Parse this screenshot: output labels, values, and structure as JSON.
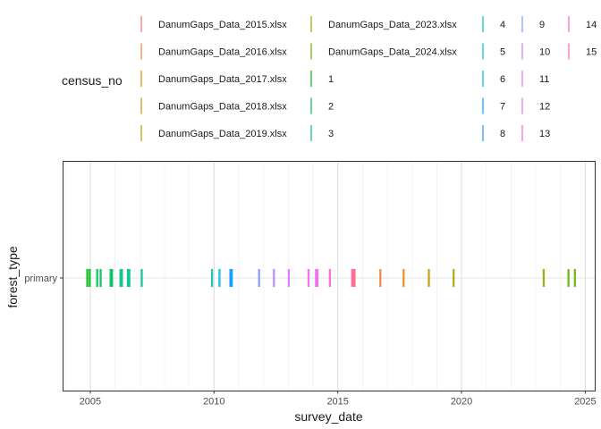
{
  "chart_data": {
    "type": "scatter",
    "title": "",
    "xlabel": "survey_date",
    "ylabel": "forest_type",
    "xlim": [
      2003.9,
      2025.4
    ],
    "x_ticks": [
      2005,
      2010,
      2015,
      2020,
      2025
    ],
    "x_tick_labels": [
      "2005",
      "2010",
      "2015",
      "2020",
      "2025"
    ],
    "categories": [
      "primary"
    ],
    "grid": true,
    "legend": {
      "title": "census_no",
      "placement": "top",
      "columns": [
        [
          "DanumGaps_Data_2015.xlsx",
          "DanumGaps_Data_2016.xlsx",
          "DanumGaps_Data_2017.xlsx",
          "DanumGaps_Data_2018.xlsx",
          "DanumGaps_Data_2019.xlsx"
        ],
        [
          "DanumGaps_Data_2023.xlsx",
          "DanumGaps_Data_2024.xlsx",
          "1",
          "2",
          "3"
        ],
        [
          "4",
          "5",
          "6",
          "7",
          "8"
        ],
        [
          "9",
          "10",
          "11",
          "12",
          "13"
        ],
        [
          "14",
          "15"
        ]
      ]
    },
    "series": [
      {
        "name": "DanumGaps_Data_2015.xlsx",
        "color": "#F8766D",
        "x": [
          2015.62,
          2015.68
        ]
      },
      {
        "name": "DanumGaps_Data_2016.xlsx",
        "color": "#EC8239",
        "x": [
          2016.72
        ]
      },
      {
        "name": "DanumGaps_Data_2017.xlsx",
        "color": "#DB8E00",
        "x": [
          2017.66
        ]
      },
      {
        "name": "DanumGaps_Data_2018.xlsx",
        "color": "#C79800",
        "x": [
          2018.68
        ]
      },
      {
        "name": "DanumGaps_Data_2019.xlsx",
        "color": "#AEA200",
        "x": [
          2019.68
        ]
      },
      {
        "name": "DanumGaps_Data_2023.xlsx",
        "color": "#8FAA00",
        "x": [
          2023.32
        ]
      },
      {
        "name": "DanumGaps_Data_2024.xlsx",
        "color": "#64B200",
        "x": [
          2024.32,
          2024.58
        ]
      },
      {
        "name": "1",
        "color": "#00B81B",
        "x": [
          2004.88,
          2004.98
        ]
      },
      {
        "name": "2",
        "color": "#00BD5C",
        "x": [
          2005.28,
          2005.42,
          2005.82,
          2005.88
        ]
      },
      {
        "name": "3",
        "color": "#00C08E",
        "x": [
          2006.22,
          2006.28,
          2006.52,
          2006.58,
          2007.08
        ]
      },
      {
        "name": "4",
        "color": "#00C1B7",
        "x": [
          2009.92
        ]
      },
      {
        "name": "5",
        "color": "#00BDDC",
        "x": [
          2010.22
        ]
      },
      {
        "name": "6",
        "color": "#00B5EE",
        "x": [
          2010.68
        ]
      },
      {
        "name": "7",
        "color": "#00A7FF",
        "x": [
          2010.72
        ]
      },
      {
        "name": "8",
        "color": "#1F9AFF",
        "x": [
          2010.66
        ]
      },
      {
        "name": "9",
        "color": "#7F96FF",
        "x": [
          2011.82
        ]
      },
      {
        "name": "10",
        "color": "#B385FF",
        "x": [
          2012.42
        ]
      },
      {
        "name": "11",
        "color": "#D874FD",
        "x": [
          2013.02
        ]
      },
      {
        "name": "12",
        "color": "#EF67EB",
        "x": [
          2013.82,
          2014.12,
          2014.18
        ]
      },
      {
        "name": "13",
        "color": "#FD61D3",
        "x": [
          2014.68
        ]
      },
      {
        "name": "14",
        "color": "#FF63B6",
        "x": [
          2015.58
        ]
      },
      {
        "name": "15",
        "color": "#FF6C91",
        "x": [
          2015.64
        ]
      }
    ]
  }
}
